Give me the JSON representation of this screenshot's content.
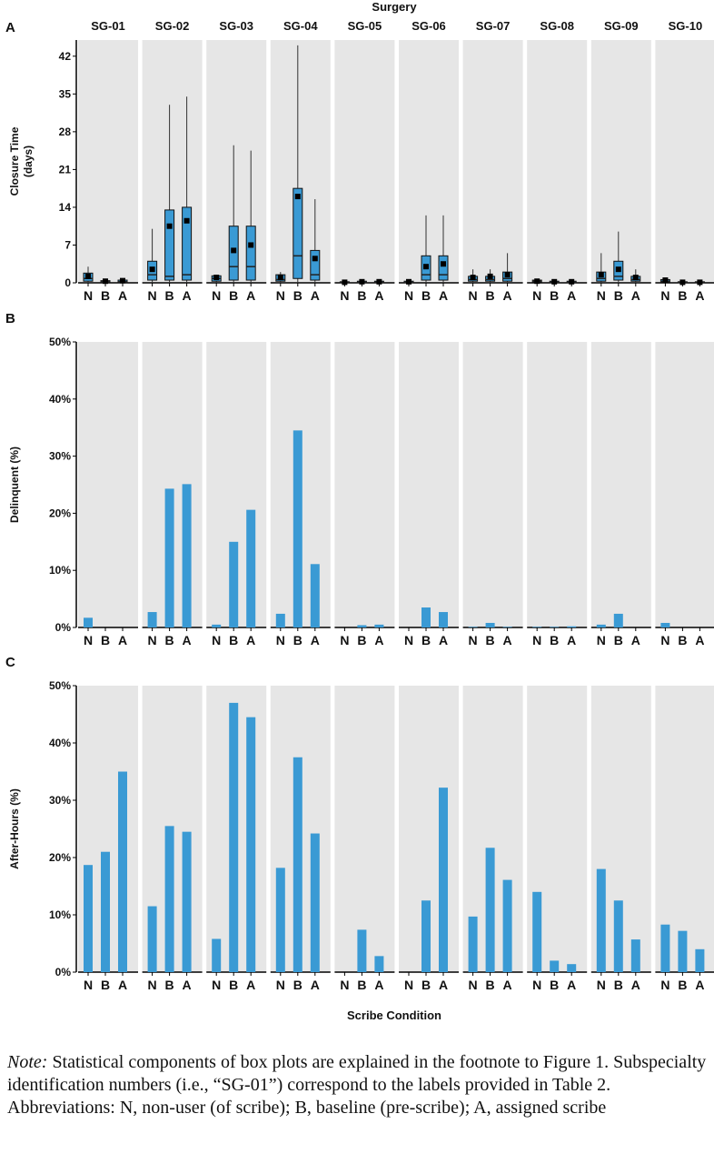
{
  "colors": {
    "bar": "#3a9ad4",
    "panel_bg": "#e6e6e6",
    "axis": "#000000",
    "median": "#222222",
    "mean": "#000000"
  },
  "chart_data": [
    {
      "panel_letter": "A",
      "type": "box",
      "title": "Surgery",
      "ylabel": "Closure Time\n(days)",
      "ylim": [
        0,
        45
      ],
      "yticks": [
        0,
        7,
        14,
        21,
        28,
        35,
        42
      ],
      "ytick_labels": [
        "0",
        "7",
        "14",
        "21",
        "28",
        "35",
        "42"
      ],
      "groups": [
        "SG-01",
        "SG-02",
        "SG-03",
        "SG-04",
        "SG-05",
        "SG-06",
        "SG-07",
        "SG-08",
        "SG-09",
        "SG-10"
      ],
      "conditions": [
        "N",
        "B",
        "A"
      ],
      "boxes": [
        [
          {
            "min": 0,
            "q1": 0.3,
            "median": 0.8,
            "q3": 1.8,
            "max": 3,
            "mean": 1.2
          },
          {
            "min": 0,
            "q1": 0,
            "median": 0.2,
            "q3": 0.4,
            "max": 0.6,
            "mean": 0.3
          },
          {
            "min": 0,
            "q1": 0,
            "median": 0.2,
            "q3": 0.5,
            "max": 0.8,
            "mean": 0.4
          }
        ],
        [
          {
            "min": 0,
            "q1": 0.5,
            "median": 1.5,
            "q3": 4,
            "max": 10,
            "mean": 2.5
          },
          {
            "min": 0,
            "q1": 0.5,
            "median": 1.2,
            "q3": 13.5,
            "max": 33,
            "mean": 10.5
          },
          {
            "min": 0,
            "q1": 0.5,
            "median": 1.5,
            "q3": 14,
            "max": 34.5,
            "mean": 11.5
          }
        ],
        [
          {
            "min": 0,
            "q1": 0.3,
            "median": 0.8,
            "q3": 1.3,
            "max": 1.5,
            "mean": 1
          },
          {
            "min": 0,
            "q1": 0.5,
            "median": 3,
            "q3": 10.5,
            "max": 25.5,
            "mean": 6
          },
          {
            "min": 0,
            "q1": 0.5,
            "median": 3,
            "q3": 10.5,
            "max": 24.5,
            "mean": 7
          }
        ],
        [
          {
            "min": 0,
            "q1": 0.3,
            "median": 0.6,
            "q3": 1.5,
            "max": 2,
            "mean": 1
          },
          {
            "min": 0,
            "q1": 0.8,
            "median": 5,
            "q3": 17.5,
            "max": 44,
            "mean": 16
          },
          {
            "min": 0,
            "q1": 0.5,
            "median": 1.5,
            "q3": 6,
            "max": 15.5,
            "mean": 4.5
          }
        ],
        [
          {
            "min": 0,
            "q1": 0,
            "median": 0.1,
            "q3": 0.2,
            "max": 0.3,
            "mean": 0.1
          },
          {
            "min": 0,
            "q1": 0,
            "median": 0.1,
            "q3": 0.3,
            "max": 0.4,
            "mean": 0.2
          },
          {
            "min": 0,
            "q1": 0,
            "median": 0.1,
            "q3": 0.3,
            "max": 0.4,
            "mean": 0.2
          }
        ],
        [
          {
            "min": 0,
            "q1": 0,
            "median": 0.1,
            "q3": 0.3,
            "max": 0.4,
            "mean": 0.2
          },
          {
            "min": 0,
            "q1": 0.5,
            "median": 1.5,
            "q3": 5,
            "max": 12.5,
            "mean": 3
          },
          {
            "min": 0,
            "q1": 0.5,
            "median": 1.5,
            "q3": 5,
            "max": 12.5,
            "mean": 3.5
          }
        ],
        [
          {
            "min": 0,
            "q1": 0.3,
            "median": 0.6,
            "q3": 1.2,
            "max": 2.5,
            "mean": 1
          },
          {
            "min": 0,
            "q1": 0.3,
            "median": 0.6,
            "q3": 1.2,
            "max": 2.5,
            "mean": 1.2
          },
          {
            "min": 0,
            "q1": 0.3,
            "median": 0.8,
            "q3": 2,
            "max": 5.5,
            "mean": 1.5
          }
        ],
        [
          {
            "min": 0,
            "q1": 0.1,
            "median": 0.3,
            "q3": 0.5,
            "max": 0.6,
            "mean": 0.3
          },
          {
            "min": 0,
            "q1": 0,
            "median": 0.1,
            "q3": 0.3,
            "max": 0.4,
            "mean": 0.2
          },
          {
            "min": 0,
            "q1": 0,
            "median": 0.1,
            "q3": 0.3,
            "max": 0.4,
            "mean": 0.2
          }
        ],
        [
          {
            "min": 0,
            "q1": 0.3,
            "median": 0.8,
            "q3": 2,
            "max": 5.5,
            "mean": 1.5
          },
          {
            "min": 0,
            "q1": 0.5,
            "median": 1.2,
            "q3": 4,
            "max": 9.5,
            "mean": 2.5
          },
          {
            "min": 0,
            "q1": 0.3,
            "median": 0.6,
            "q3": 1.2,
            "max": 2.5,
            "mean": 1
          }
        ],
        [
          {
            "min": 0,
            "q1": 0.1,
            "median": 0.3,
            "q3": 0.6,
            "max": 0.8,
            "mean": 0.5
          },
          {
            "min": 0,
            "q1": 0,
            "median": 0.1,
            "q3": 0.2,
            "max": 0.3,
            "mean": 0.1
          },
          {
            "min": 0,
            "q1": 0,
            "median": 0.1,
            "q3": 0.2,
            "max": 0.3,
            "mean": 0.1
          }
        ]
      ]
    },
    {
      "panel_letter": "B",
      "type": "bar",
      "ylabel": "Delinquent (%)",
      "ylim": [
        0,
        50
      ],
      "yticks": [
        0,
        10,
        20,
        30,
        40,
        50
      ],
      "ytick_labels": [
        "0%",
        "10%",
        "20%",
        "30%",
        "40%",
        "50%"
      ],
      "groups": [
        "SG-01",
        "SG-02",
        "SG-03",
        "SG-04",
        "SG-05",
        "SG-06",
        "SG-07",
        "SG-08",
        "SG-09",
        "SG-10"
      ],
      "conditions": [
        "N",
        "B",
        "A"
      ],
      "values": [
        [
          1.7,
          0,
          0
        ],
        [
          2.7,
          24.3,
          25.1
        ],
        [
          0.5,
          15,
          20.6
        ],
        [
          2.4,
          34.5,
          11.1
        ],
        [
          0,
          0.4,
          0.5
        ],
        [
          0,
          3.5,
          2.7
        ],
        [
          0.1,
          0.8,
          0.1
        ],
        [
          0.1,
          0.1,
          0.2
        ],
        [
          0.5,
          2.4,
          0
        ],
        [
          0.8,
          0,
          0
        ]
      ]
    },
    {
      "panel_letter": "C",
      "type": "bar",
      "ylabel": "After-Hours (%)",
      "xlabel": "Scribe Condition",
      "ylim": [
        0,
        50
      ],
      "yticks": [
        0,
        10,
        20,
        30,
        40,
        50
      ],
      "ytick_labels": [
        "0%",
        "10%",
        "20%",
        "30%",
        "40%",
        "50%"
      ],
      "groups": [
        "SG-01",
        "SG-02",
        "SG-03",
        "SG-04",
        "SG-05",
        "SG-06",
        "SG-07",
        "SG-08",
        "SG-09",
        "SG-10"
      ],
      "conditions": [
        "N",
        "B",
        "A"
      ],
      "values": [
        [
          18.7,
          21,
          35
        ],
        [
          11.5,
          25.5,
          24.5
        ],
        [
          5.8,
          47,
          44.5
        ],
        [
          18.2,
          37.5,
          24.2
        ],
        [
          0,
          7.4,
          2.8
        ],
        [
          0,
          12.5,
          32.2
        ],
        [
          9.7,
          21.7,
          16.1
        ],
        [
          14,
          2,
          1.4
        ],
        [
          18,
          12.5,
          5.7
        ],
        [
          8.3,
          7.2,
          4
        ]
      ]
    }
  ],
  "note": {
    "label": "Note:",
    "text": " Statistical components of box plots are explained in the footnote to Figure 1. Subspecialty identification numbers (i.e., “SG-01”) correspond to the labels provided in Table 2. Abbreviations: N, non-user (of scribe); B, baseline (pre-scribe); A, assigned scribe"
  }
}
